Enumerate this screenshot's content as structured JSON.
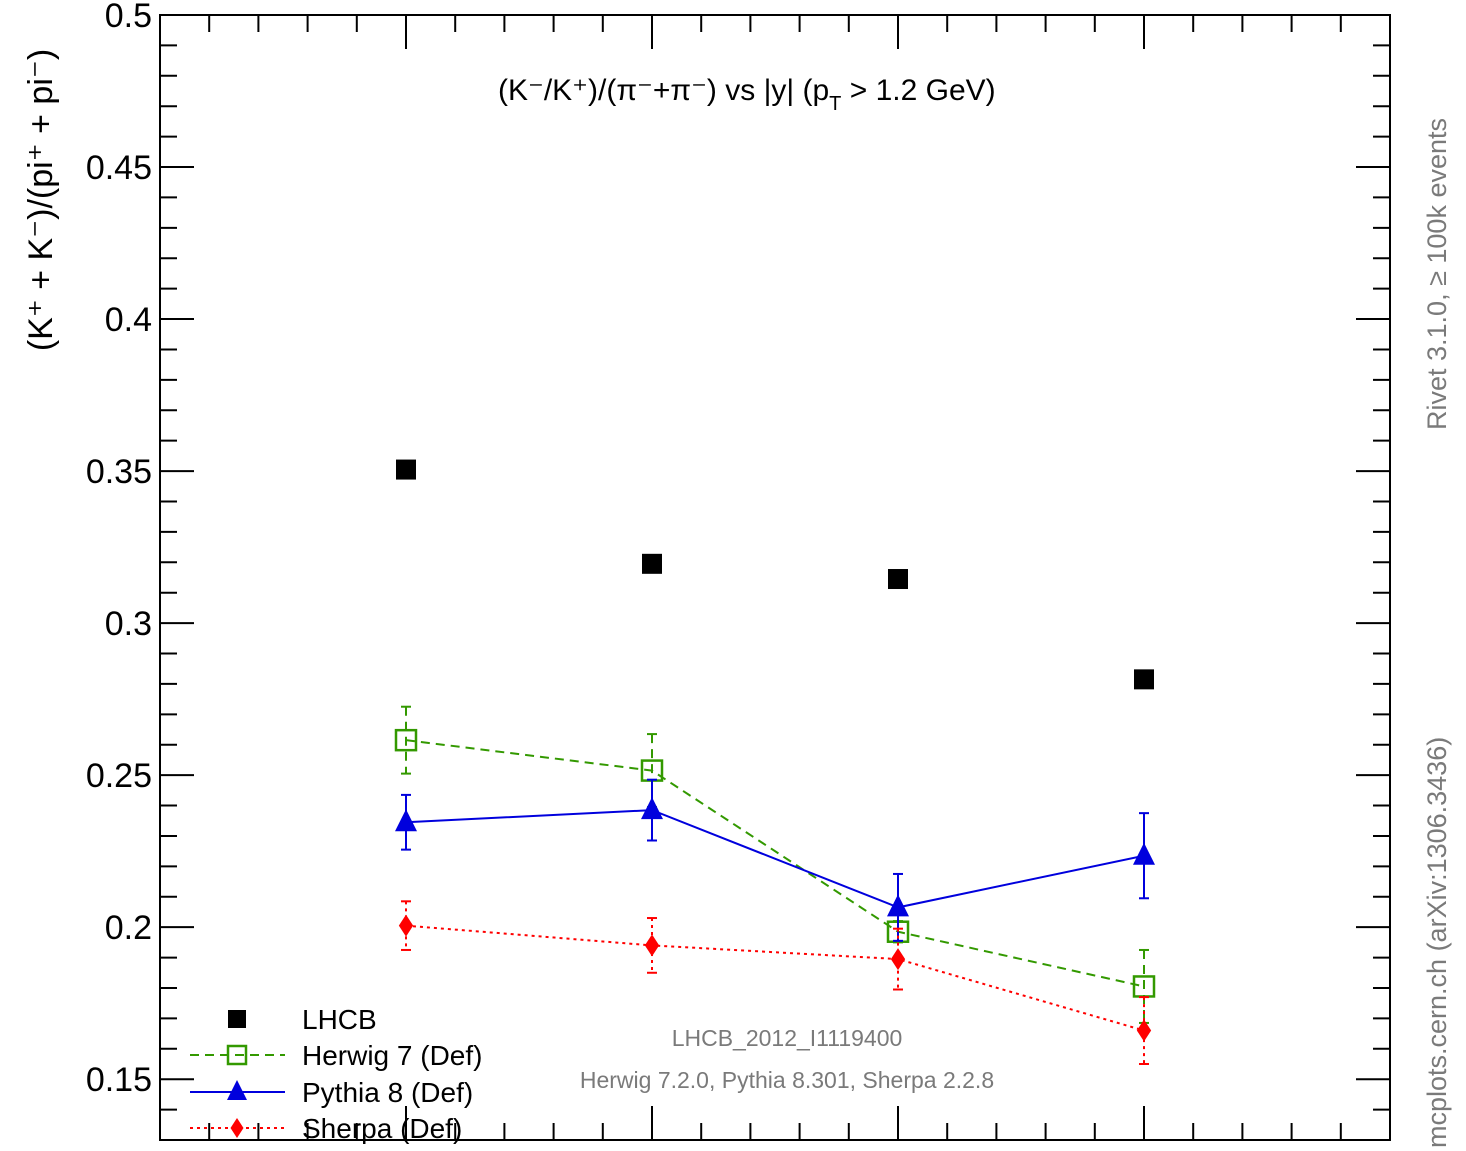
{
  "chart_data": {
    "type": "scatter",
    "title": "(K⁻/K⁺)/(π⁻+π⁻) vs |y| (p",
    "title_sub": "T",
    "title_tail": " > 1.2 GeV)",
    "ylabel": "(K⁺ + K⁻)/(pi⁺ + pi⁻)",
    "xlim": [
      2.0,
      4.5
    ],
    "ylim": [
      0.13,
      0.5
    ],
    "y_ticks": [
      0.15,
      0.2,
      0.25,
      0.3,
      0.35,
      0.4,
      0.45,
      0.5
    ],
    "y_tick_labels": [
      "0.15",
      "0.2",
      "0.25",
      "0.3",
      "0.35",
      "0.4",
      "0.45",
      "0.5"
    ],
    "x": [
      2.5,
      3.0,
      3.5,
      4.0
    ],
    "series": [
      {
        "name": "LHCB",
        "marker": "square-filled",
        "color": "#000000",
        "line": "none",
        "values": [
          0.3505,
          0.3195,
          0.3145,
          0.2815
        ],
        "errors": [
          0.0,
          0.0,
          0.0,
          0.0
        ]
      },
      {
        "name": "Herwig 7 (Def)",
        "marker": "square-open",
        "color": "#339900",
        "line": "dashed",
        "values": [
          0.2615,
          0.2515,
          0.1985,
          0.1805
        ],
        "errors": [
          0.011,
          0.012,
          0.0035,
          0.012
        ]
      },
      {
        "name": "Pythia 8 (Def)",
        "marker": "triangle-filled",
        "color": "#0000dd",
        "line": "solid",
        "values": [
          0.2345,
          0.2385,
          0.2065,
          0.2235
        ],
        "errors": [
          0.009,
          0.01,
          0.011,
          0.014
        ]
      },
      {
        "name": "Sherpa (Def)",
        "marker": "diamond-filled",
        "color": "#ff0000",
        "line": "dotted",
        "values": [
          0.2005,
          0.194,
          0.1895,
          0.166
        ],
        "errors": [
          0.008,
          0.009,
          0.01,
          0.011
        ]
      }
    ],
    "annotations": {
      "analysis": "LHCB_2012_I1119400",
      "generators": "Herwig 7.2.0, Pythia 8.301, Sherpa 2.2.8",
      "side_top": "Rivet 3.1.0, ≥ 100k events",
      "side_bottom": "mcplots.cern.ch (arXiv:1306.3436)"
    },
    "legend_position": "bottom-left",
    "grid": false
  }
}
